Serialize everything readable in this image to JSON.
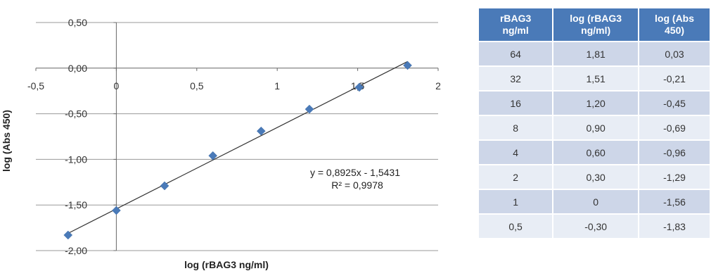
{
  "chart_data": {
    "type": "scatter",
    "xlabel": "log (rBAG3  ng/ml)",
    "ylabel": "log (Abs 450)",
    "xlim": [
      -0.5,
      2
    ],
    "ylim": [
      -2,
      0.5
    ],
    "x_ticks": [
      "-0,5",
      "0",
      "0,5",
      "1",
      "1,5",
      "2"
    ],
    "x_tick_values": [
      -0.5,
      0,
      0.5,
      1,
      1.5,
      2
    ],
    "y_ticks": [
      "0,50",
      "0,00",
      "-0,50",
      "-1,00",
      "-1,50",
      "-2,00"
    ],
    "y_tick_values": [
      0.5,
      0,
      -0.5,
      -1,
      -1.5,
      -2
    ],
    "grid": "horizontal",
    "point_color": "#4a7ab8",
    "line_color": "#333333",
    "x": [
      1.81,
      1.51,
      1.2,
      0.9,
      0.6,
      0.3,
      0,
      -0.3
    ],
    "y": [
      0.03,
      -0.21,
      -0.45,
      -0.69,
      -0.96,
      -1.29,
      -1.56,
      -1.83
    ],
    "trendline": {
      "slope": 0.8925,
      "intercept": -1.5431,
      "x_range": [
        -0.3,
        1.81
      ]
    },
    "annotations": [
      "y = 0,8925x - 1,5431",
      "R² = 0,9978"
    ]
  },
  "table": {
    "headers": [
      [
        "rBAG3",
        "ng/ml"
      ],
      [
        "log (rBAG3",
        "ng/ml)"
      ],
      [
        "log (Abs",
        "450)"
      ]
    ],
    "rows": [
      [
        "64",
        "1,81",
        "0,03"
      ],
      [
        "32",
        "1,51",
        "-0,21"
      ],
      [
        "16",
        "1,20",
        "-0,45"
      ],
      [
        "8",
        "0,90",
        "-0,69"
      ],
      [
        "4",
        "0,60",
        "-0,96"
      ],
      [
        "2",
        "0,30",
        "-1,29"
      ],
      [
        "1",
        "0",
        "-1,56"
      ],
      [
        "0,5",
        "-0,30",
        "-1,83"
      ]
    ]
  }
}
